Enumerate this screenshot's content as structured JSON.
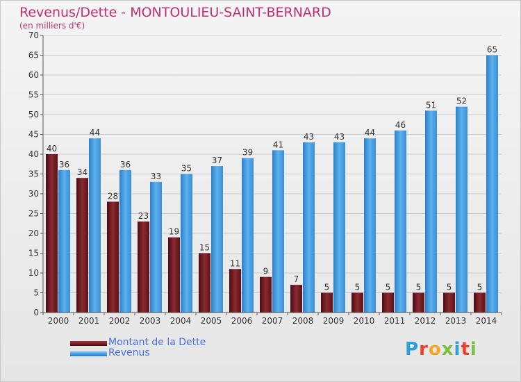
{
  "title": "Revenus/Dette - MONTOULIEU-SAINT-BERNARD",
  "subtitle": "(en milliers d'€)",
  "colors": {
    "dette": "#7a1a22",
    "revenus": "#3d9ae0",
    "axis": "#555555",
    "grid": "#cccccc"
  },
  "chart_data": {
    "type": "bar",
    "categories": [
      "2000",
      "2001",
      "2002",
      "2003",
      "2004",
      "2005",
      "2006",
      "2007",
      "2008",
      "2009",
      "2010",
      "2011",
      "2012",
      "2013",
      "2014"
    ],
    "series": [
      {
        "name": "Montant de la Dette",
        "values": [
          40,
          34,
          28,
          23,
          19,
          15,
          11,
          9,
          7,
          5,
          5,
          5,
          5,
          5,
          5
        ]
      },
      {
        "name": "Revenus",
        "values": [
          36,
          44,
          36,
          33,
          35,
          37,
          39,
          41,
          43,
          43,
          44,
          46,
          51,
          52,
          65
        ]
      }
    ],
    "ylim": [
      0,
      70
    ],
    "yticks": [
      0,
      5,
      10,
      15,
      20,
      25,
      30,
      35,
      40,
      45,
      50,
      55,
      60,
      65,
      70
    ],
    "grid": true,
    "legend": "bottom-left"
  },
  "legend": {
    "items": [
      {
        "label": "Montant de la Dette",
        "color": "#7a1a22"
      },
      {
        "label": "Revenus",
        "color": "#3d9ae0"
      }
    ]
  },
  "logo": {
    "letters": [
      {
        "ch": "P",
        "color": "#2a9fd8"
      },
      {
        "ch": "r",
        "color": "#e8402a"
      },
      {
        "ch": "o",
        "color": "#f5a623"
      },
      {
        "ch": "x",
        "color": "#7ac143"
      },
      {
        "ch": "i",
        "color": "#2a9fd8"
      },
      {
        "ch": "t",
        "color": "#e8402a"
      },
      {
        "ch": "i",
        "color": "#7ac143"
      }
    ]
  }
}
